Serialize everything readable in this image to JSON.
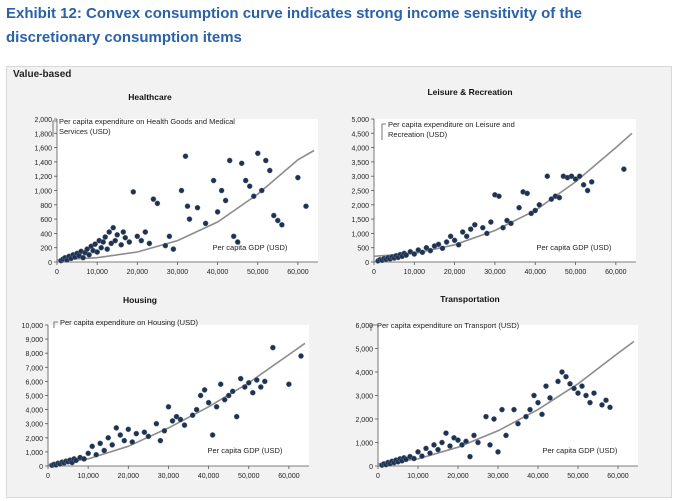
{
  "title_line1": "Exhibit 12: Convex consumption curve indicates strong income sensitivity of the",
  "title_line2": "discretionary consumption items",
  "section_label": "Value-based",
  "colors": {
    "dot": "#1f3350",
    "curve": "#8c8c8c",
    "title": "#2a62a8"
  },
  "chart_data": [
    {
      "type": "scatter",
      "title": "Healthcare",
      "annotation": "Per capita expenditure on Health Goods and Medical Services (USD)",
      "xlabel": "Per capita GDP (USD)",
      "xticks": [
        "0",
        "10,000",
        "20,000",
        "30,000",
        "40,000",
        "50,000",
        "60,000"
      ],
      "yticks": [
        "0",
        "200",
        "400",
        "600",
        "800",
        "1,000",
        "1,200",
        "1,400",
        "1,600",
        "1,800",
        "2,000"
      ],
      "xlim": [
        0,
        65000
      ],
      "ylim": [
        0,
        2000
      ],
      "trend": [
        [
          0,
          30
        ],
        [
          10000,
          60
        ],
        [
          20000,
          140
        ],
        [
          30000,
          300
        ],
        [
          40000,
          560
        ],
        [
          50000,
          950
        ],
        [
          60000,
          1430
        ],
        [
          64000,
          1560
        ]
      ],
      "points": [
        [
          1000,
          20
        ],
        [
          1500,
          40
        ],
        [
          2000,
          60
        ],
        [
          2500,
          30
        ],
        [
          3000,
          80
        ],
        [
          3500,
          50
        ],
        [
          4000,
          100
        ],
        [
          4500,
          70
        ],
        [
          5000,
          120
        ],
        [
          5500,
          90
        ],
        [
          6000,
          150
        ],
        [
          6500,
          60
        ],
        [
          7000,
          130
        ],
        [
          7500,
          180
        ],
        [
          8000,
          100
        ],
        [
          8500,
          220
        ],
        [
          9000,
          160
        ],
        [
          9500,
          250
        ],
        [
          10000,
          140
        ],
        [
          10500,
          300
        ],
        [
          11000,
          200
        ],
        [
          11500,
          280
        ],
        [
          12000,
          350
        ],
        [
          12500,
          180
        ],
        [
          13000,
          420
        ],
        [
          13500,
          260
        ],
        [
          14000,
          480
        ],
        [
          14500,
          300
        ],
        [
          15000,
          380
        ],
        [
          16000,
          240
        ],
        [
          16500,
          420
        ],
        [
          17000,
          340
        ],
        [
          18000,
          280
        ],
        [
          19000,
          980
        ],
        [
          20000,
          360
        ],
        [
          21000,
          300
        ],
        [
          22000,
          420
        ],
        [
          23000,
          260
        ],
        [
          24000,
          880
        ],
        [
          25000,
          820
        ],
        [
          27000,
          230
        ],
        [
          28000,
          360
        ],
        [
          29000,
          180
        ],
        [
          31000,
          1000
        ],
        [
          32000,
          1480
        ],
        [
          32500,
          780
        ],
        [
          33000,
          600
        ],
        [
          35000,
          760
        ],
        [
          37000,
          540
        ],
        [
          39000,
          1140
        ],
        [
          40000,
          700
        ],
        [
          41000,
          1000
        ],
        [
          42000,
          860
        ],
        [
          43000,
          1420
        ],
        [
          44000,
          360
        ],
        [
          45000,
          280
        ],
        [
          46000,
          1380
        ],
        [
          47000,
          1140
        ],
        [
          48000,
          1060
        ],
        [
          49000,
          920
        ],
        [
          50000,
          1520
        ],
        [
          51000,
          1000
        ],
        [
          52000,
          1420
        ],
        [
          53000,
          1280
        ],
        [
          54000,
          650
        ],
        [
          55000,
          580
        ],
        [
          56000,
          520
        ],
        [
          60000,
          1180
        ],
        [
          62000,
          780
        ]
      ]
    },
    {
      "type": "scatter",
      "title": "Leisure & Recreation",
      "annotation": "Per capita expenditure on Leisure and Recreation (USD)",
      "xlabel": "Per capita GDP (USD)",
      "xticks": [
        "0",
        "10,000",
        "20,000",
        "30,000",
        "40,000",
        "50,000",
        "60,000"
      ],
      "yticks": [
        "0",
        "500",
        "1,000",
        "1,500",
        "2,000",
        "2,500",
        "3,000",
        "3,500",
        "4,000",
        "4,500",
        "5,000"
      ],
      "xlim": [
        0,
        65000
      ],
      "ylim": [
        0,
        5000
      ],
      "trend": [
        [
          0,
          200
        ],
        [
          10000,
          300
        ],
        [
          20000,
          600
        ],
        [
          30000,
          1100
        ],
        [
          40000,
          1800
        ],
        [
          50000,
          2800
        ],
        [
          60000,
          4000
        ],
        [
          64000,
          4500
        ]
      ],
      "points": [
        [
          1000,
          40
        ],
        [
          1500,
          80
        ],
        [
          2000,
          60
        ],
        [
          2500,
          120
        ],
        [
          3000,
          90
        ],
        [
          3500,
          150
        ],
        [
          4000,
          110
        ],
        [
          4500,
          180
        ],
        [
          5000,
          140
        ],
        [
          5500,
          220
        ],
        [
          6000,
          160
        ],
        [
          6500,
          260
        ],
        [
          7000,
          200
        ],
        [
          7500,
          300
        ],
        [
          8000,
          240
        ],
        [
          9000,
          360
        ],
        [
          10000,
          280
        ],
        [
          11000,
          420
        ],
        [
          12000,
          340
        ],
        [
          13000,
          500
        ],
        [
          14000,
          400
        ],
        [
          15000,
          560
        ],
        [
          16000,
          620
        ],
        [
          17000,
          480
        ],
        [
          18000,
          700
        ],
        [
          19000,
          900
        ],
        [
          20000,
          760
        ],
        [
          21000,
          600
        ],
        [
          22000,
          1050
        ],
        [
          23000,
          900
        ],
        [
          24000,
          1150
        ],
        [
          25000,
          1300
        ],
        [
          27000,
          1200
        ],
        [
          28000,
          1000
        ],
        [
          29000,
          1400
        ],
        [
          30000,
          2350
        ],
        [
          31000,
          2300
        ],
        [
          32000,
          1200
        ],
        [
          33000,
          1450
        ],
        [
          34000,
          1350
        ],
        [
          36000,
          1900
        ],
        [
          37000,
          2450
        ],
        [
          38000,
          2400
        ],
        [
          39000,
          1700
        ],
        [
          40000,
          1800
        ],
        [
          41000,
          2000
        ],
        [
          43000,
          3000
        ],
        [
          44000,
          2200
        ],
        [
          45000,
          2300
        ],
        [
          46000,
          2250
        ],
        [
          47000,
          3000
        ],
        [
          48000,
          2950
        ],
        [
          49000,
          3000
        ],
        [
          50000,
          2900
        ],
        [
          51000,
          3000
        ],
        [
          52000,
          2700
        ],
        [
          53000,
          2500
        ],
        [
          54000,
          2800
        ],
        [
          62000,
          3250
        ]
      ]
    },
    {
      "type": "scatter",
      "title": "Housing",
      "annotation": "Per capita expenditure on Housing (USD)",
      "xlabel": "Per capita GDP (USD)",
      "xticks": [
        "0",
        "10,000",
        "20,000",
        "30,000",
        "40,000",
        "50,000",
        "60,000"
      ],
      "yticks": [
        "0",
        "1,000",
        "2,000",
        "3,000",
        "4,000",
        "5,000",
        "6,000",
        "7,000",
        "8,000",
        "9,000",
        "10,000"
      ],
      "xlim": [
        0,
        65000
      ],
      "ylim": [
        0,
        10000
      ],
      "trend": [
        [
          0,
          100
        ],
        [
          10000,
          500
        ],
        [
          20000,
          1400
        ],
        [
          30000,
          2700
        ],
        [
          40000,
          4200
        ],
        [
          50000,
          5900
        ],
        [
          60000,
          7900
        ],
        [
          64000,
          8700
        ]
      ],
      "points": [
        [
          1000,
          50
        ],
        [
          1500,
          120
        ],
        [
          2000,
          80
        ],
        [
          2500,
          200
        ],
        [
          3000,
          150
        ],
        [
          3500,
          280
        ],
        [
          4000,
          220
        ],
        [
          4500,
          350
        ],
        [
          5000,
          300
        ],
        [
          5500,
          420
        ],
        [
          6000,
          250
        ],
        [
          6500,
          500
        ],
        [
          7000,
          400
        ],
        [
          8000,
          600
        ],
        [
          9000,
          500
        ],
        [
          10000,
          900
        ],
        [
          11000,
          1400
        ],
        [
          12000,
          800
        ],
        [
          13000,
          1600
        ],
        [
          14000,
          1100
        ],
        [
          15000,
          2000
        ],
        [
          16000,
          1500
        ],
        [
          17000,
          2700
        ],
        [
          18000,
          2200
        ],
        [
          19000,
          1800
        ],
        [
          20000,
          2600
        ],
        [
          21000,
          1700
        ],
        [
          22000,
          2300
        ],
        [
          24000,
          2400
        ],
        [
          25000,
          2100
        ],
        [
          27000,
          3000
        ],
        [
          28000,
          1800
        ],
        [
          29000,
          2500
        ],
        [
          30000,
          4200
        ],
        [
          31000,
          3200
        ],
        [
          32000,
          3500
        ],
        [
          33000,
          3300
        ],
        [
          34000,
          2900
        ],
        [
          36000,
          3600
        ],
        [
          37000,
          4000
        ],
        [
          38000,
          5000
        ],
        [
          39000,
          5400
        ],
        [
          40000,
          4500
        ],
        [
          41000,
          2200
        ],
        [
          42000,
          4200
        ],
        [
          43000,
          5800
        ],
        [
          44000,
          4700
        ],
        [
          45000,
          5000
        ],
        [
          46000,
          5300
        ],
        [
          47000,
          3500
        ],
        [
          48000,
          6200
        ],
        [
          49000,
          5600
        ],
        [
          50000,
          5900
        ],
        [
          51000,
          5200
        ],
        [
          52000,
          6100
        ],
        [
          53000,
          5600
        ],
        [
          54000,
          6000
        ],
        [
          56000,
          8400
        ],
        [
          60000,
          5800
        ],
        [
          63000,
          7800
        ]
      ]
    },
    {
      "type": "scatter",
      "title": "Transportation",
      "annotation": "Per capita expenditure on Transport (USD)",
      "xlabel": "Per capita GDP (USD)",
      "xticks": [
        "0",
        "10,000",
        "20,000",
        "30,000",
        "40,000",
        "50,000",
        "60,000"
      ],
      "yticks": [
        "0",
        "1,000",
        "2,000",
        "3,000",
        "4,000",
        "5,000",
        "6,000"
      ],
      "xlim": [
        0,
        65000
      ],
      "ylim": [
        0,
        6000
      ],
      "trend": [
        [
          0,
          80
        ],
        [
          10000,
          300
        ],
        [
          20000,
          800
        ],
        [
          30000,
          1500
        ],
        [
          40000,
          2400
        ],
        [
          50000,
          3500
        ],
        [
          60000,
          4800
        ],
        [
          64000,
          5300
        ]
      ],
      "points": [
        [
          1000,
          40
        ],
        [
          1500,
          90
        ],
        [
          2000,
          60
        ],
        [
          2500,
          150
        ],
        [
          3000,
          100
        ],
        [
          3500,
          200
        ],
        [
          4000,
          140
        ],
        [
          4500,
          250
        ],
        [
          5000,
          180
        ],
        [
          5500,
          300
        ],
        [
          6000,
          220
        ],
        [
          6500,
          350
        ],
        [
          7000,
          280
        ],
        [
          8000,
          400
        ],
        [
          9000,
          320
        ],
        [
          10000,
          600
        ],
        [
          11000,
          420
        ],
        [
          12000,
          750
        ],
        [
          13000,
          550
        ],
        [
          14000,
          900
        ],
        [
          15000,
          700
        ],
        [
          16000,
          1000
        ],
        [
          17000,
          1400
        ],
        [
          18000,
          850
        ],
        [
          19000,
          1200
        ],
        [
          20000,
          1100
        ],
        [
          21000,
          900
        ],
        [
          22000,
          1050
        ],
        [
          23000,
          400
        ],
        [
          24000,
          1300
        ],
        [
          25000,
          1000
        ],
        [
          27000,
          2100
        ],
        [
          28000,
          900
        ],
        [
          29000,
          2000
        ],
        [
          30000,
          600
        ],
        [
          31000,
          2400
        ],
        [
          32000,
          1300
        ],
        [
          34000,
          2400
        ],
        [
          35000,
          1800
        ],
        [
          37000,
          2100
        ],
        [
          38000,
          2400
        ],
        [
          39000,
          3000
        ],
        [
          40000,
          2700
        ],
        [
          41000,
          2200
        ],
        [
          42000,
          3400
        ],
        [
          43000,
          2900
        ],
        [
          45000,
          3600
        ],
        [
          46000,
          4000
        ],
        [
          47000,
          3800
        ],
        [
          48000,
          3500
        ],
        [
          49000,
          3300
        ],
        [
          50000,
          3100
        ],
        [
          51000,
          3400
        ],
        [
          52000,
          3000
        ],
        [
          53000,
          2700
        ],
        [
          54000,
          3100
        ],
        [
          56000,
          2600
        ],
        [
          57000,
          2800
        ],
        [
          58000,
          2500
        ]
      ]
    }
  ]
}
